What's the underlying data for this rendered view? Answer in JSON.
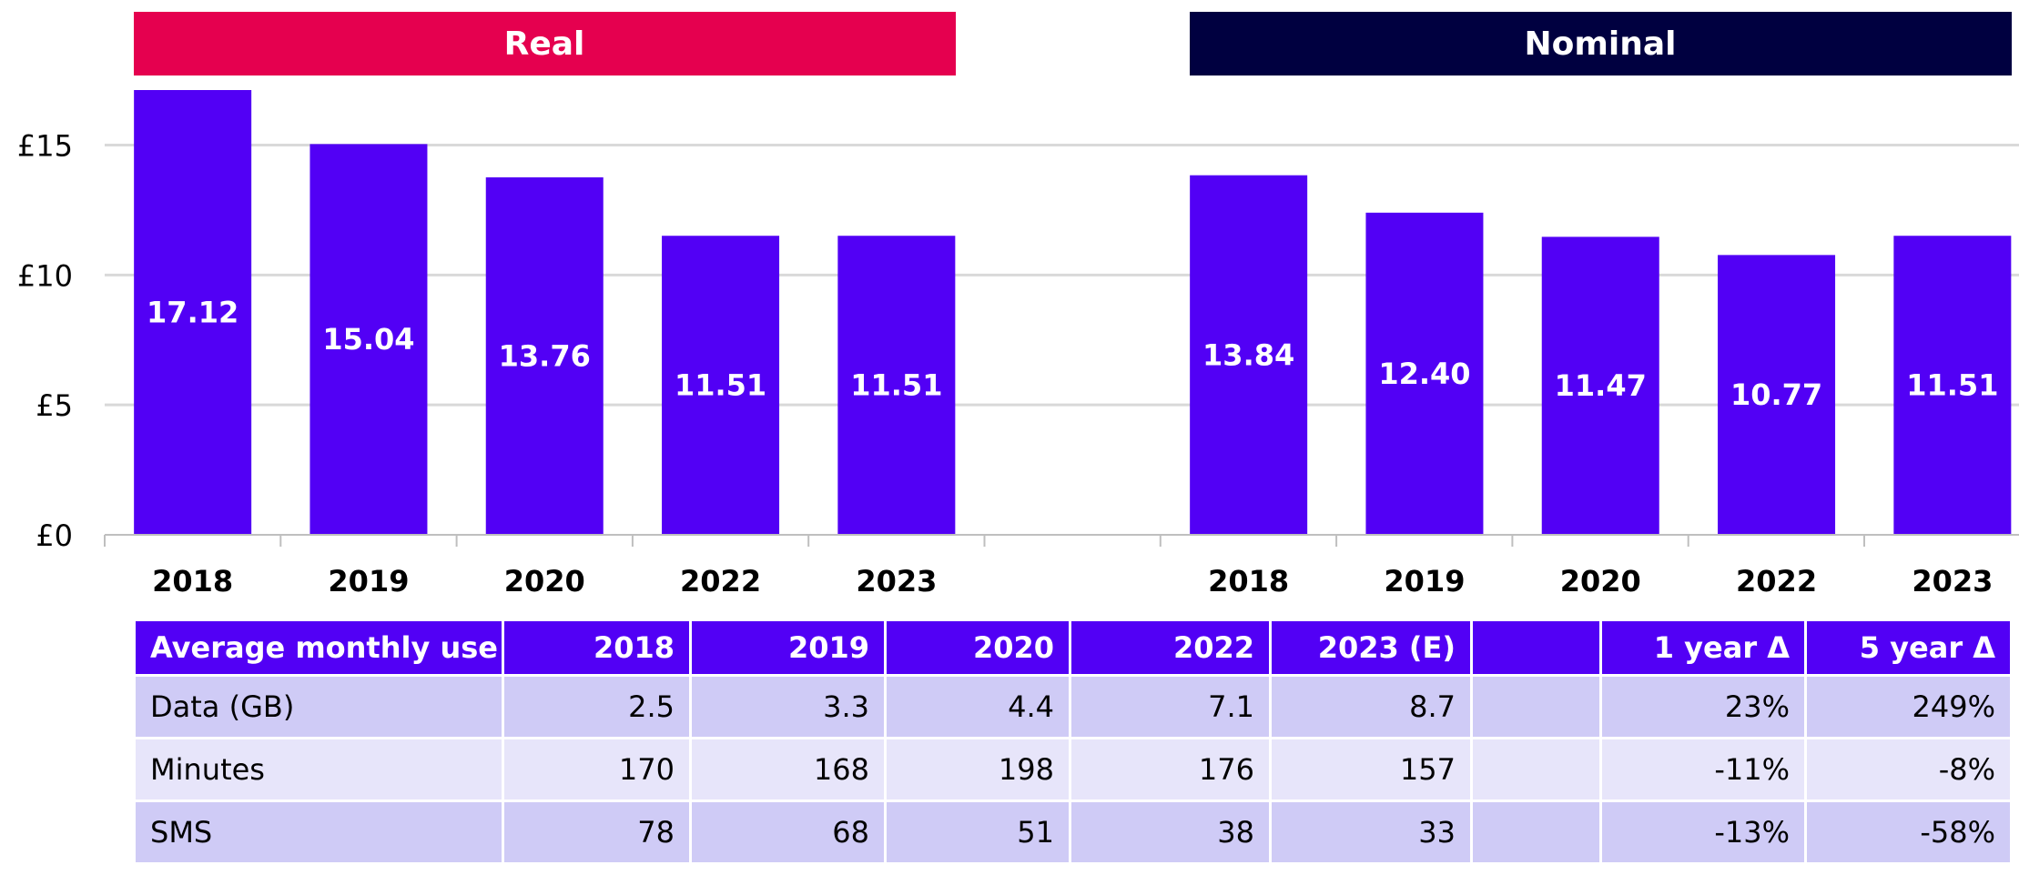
{
  "colors": {
    "bar": "#5200f5",
    "real_header": "#e5004f",
    "nominal_header": "#000040",
    "grid": "#d9d9d9",
    "axis": "#bfbfbf"
  },
  "chart_data": {
    "type": "bar",
    "ylim": [
      0,
      17.12
    ],
    "yticks": [
      {
        "value": 0,
        "label": "£0"
      },
      {
        "value": 5,
        "label": "£5"
      },
      {
        "value": 10,
        "label": "£10"
      },
      {
        "value": 15,
        "label": "£15"
      }
    ],
    "grid": true,
    "groups": [
      {
        "name": "Real",
        "categories": [
          "2018",
          "2019",
          "2020",
          "2022",
          "2023"
        ],
        "values": [
          17.12,
          15.04,
          13.76,
          11.51,
          11.51
        ],
        "labels": [
          "17.12",
          "15.04",
          "13.76",
          "11.51",
          "11.51"
        ]
      },
      {
        "name": "Nominal",
        "categories": [
          "2018",
          "2019",
          "2020",
          "2022",
          "2023"
        ],
        "values": [
          13.84,
          12.4,
          11.47,
          10.77,
          11.51
        ],
        "labels": [
          "13.84",
          "12.40",
          "11.47",
          "10.77",
          "11.51"
        ]
      }
    ]
  },
  "table": {
    "headers": [
      "Average monthly use",
      "2018",
      "2019",
      "2020",
      "2022",
      "2023 (E)",
      "",
      "1 year Δ",
      "5 year Δ"
    ],
    "rows": [
      [
        "Data (GB)",
        "2.5",
        "3.3",
        "4.4",
        "7.1",
        "8.7",
        "",
        "23%",
        "249%"
      ],
      [
        "Minutes",
        "170",
        "168",
        "198",
        "176",
        "157",
        "",
        "-11%",
        "-8%"
      ],
      [
        "SMS",
        "78",
        "68",
        "51",
        "38",
        "33",
        "",
        "-13%",
        "-58%"
      ]
    ]
  }
}
